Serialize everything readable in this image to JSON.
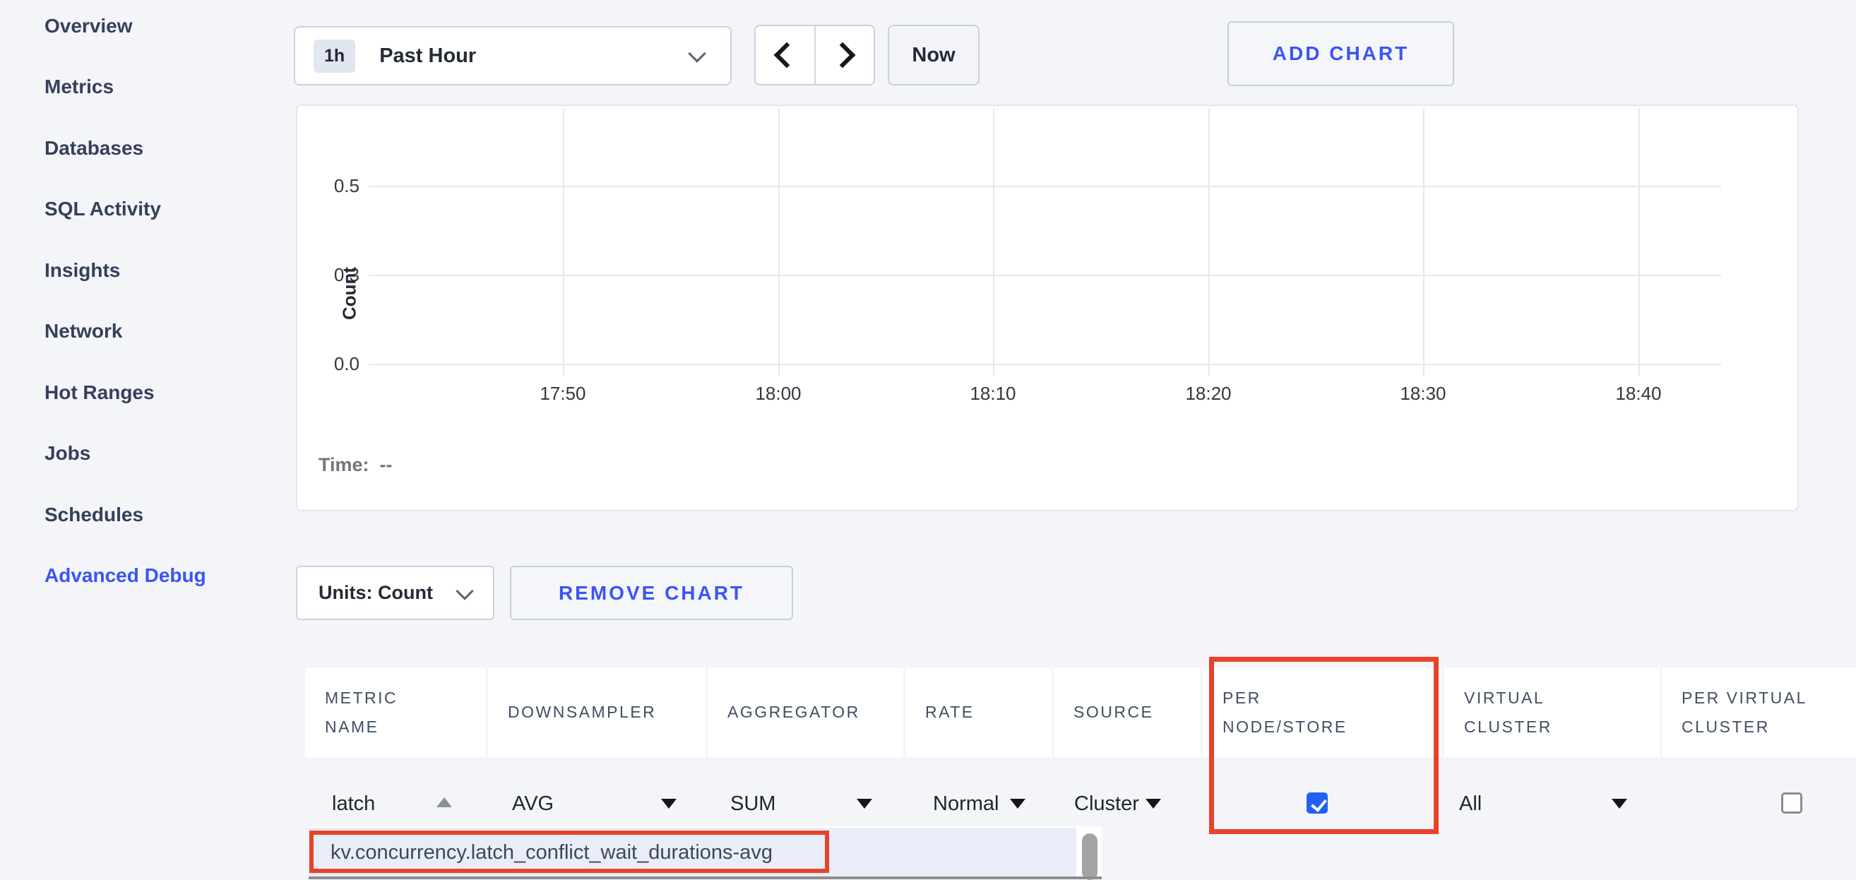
{
  "sidebar": {
    "items": [
      {
        "label": "Overview"
      },
      {
        "label": "Metrics"
      },
      {
        "label": "Databases"
      },
      {
        "label": "SQL Activity"
      },
      {
        "label": "Insights"
      },
      {
        "label": "Network"
      },
      {
        "label": "Hot Ranges"
      },
      {
        "label": "Jobs"
      },
      {
        "label": "Schedules"
      },
      {
        "label": "Advanced Debug"
      }
    ],
    "active_item": "Advanced Debug"
  },
  "toolbar": {
    "range_badge": "1h",
    "range_label": "Past Hour",
    "now_label": "Now",
    "add_chart_label": "ADD CHART"
  },
  "chart_controls": {
    "units_label": "Units: Count",
    "remove_label": "REMOVE CHART"
  },
  "chart_data": {
    "type": "line",
    "title": "",
    "ylabel": "Count",
    "xlabel": "",
    "y_ticks": [
      "0.5",
      "0.3",
      "0.0"
    ],
    "x_ticks": [
      "17:50",
      "18:00",
      "18:10",
      "18:20",
      "18:30",
      "18:40"
    ],
    "ylim": [
      0,
      0.5
    ],
    "grid": true,
    "series": [],
    "hover_time_label": "Time:",
    "hover_time_value": "--"
  },
  "table": {
    "columns": [
      "METRIC NAME",
      "DOWNSAMPLER",
      "AGGREGATOR",
      "RATE",
      "SOURCE",
      "PER NODE/STORE",
      "VIRTUAL CLUSTER",
      "PER VIRTUAL CLUSTER"
    ],
    "row": {
      "metric_name": "latch",
      "downsampler": "AVG",
      "aggregator": "SUM",
      "rate": "Normal",
      "source": "Cluster",
      "per_node_store_checked": true,
      "virtual_cluster": "All",
      "per_virtual_cluster_checked": false
    }
  },
  "autocomplete": {
    "items": [
      "kv.concurrency.latch_conflict_wait_durations-avg"
    ]
  },
  "colors": {
    "accent_blue": "#3b54f5",
    "checkbox_blue": "#2161f2",
    "annotation_red": "#e8432a",
    "page_background": "#f4f5f9"
  }
}
